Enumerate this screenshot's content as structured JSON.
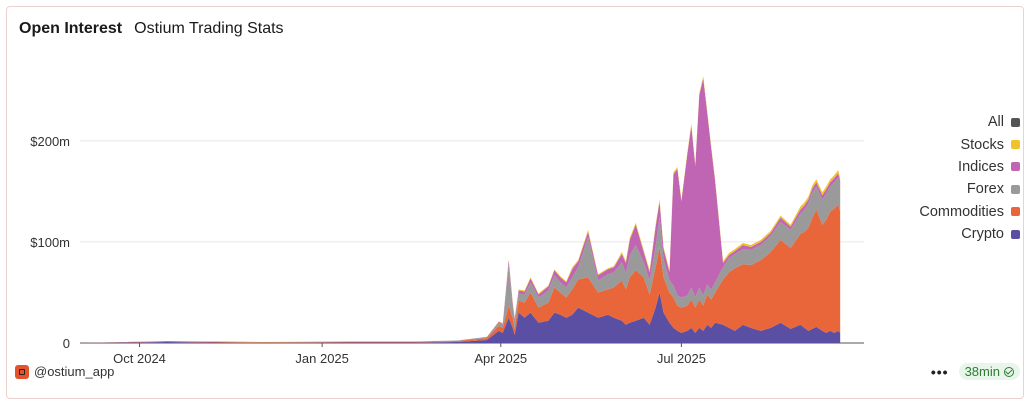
{
  "header": {
    "title": "Open Interest",
    "subtitle": "Ostium Trading Stats"
  },
  "footer": {
    "handle": "@ostium_app",
    "more_label": "•••",
    "freshness": "38min"
  },
  "colors": {
    "Stocks": "#f0c22c",
    "Indices": "#c064b4",
    "Forex": "#9a9a9a",
    "Commodities": "#e8663a",
    "Crypto": "#5a4fa3",
    "All": "#555555"
  },
  "legend": [
    "All",
    "Stocks",
    "Indices",
    "Forex",
    "Commodities",
    "Crypto"
  ],
  "chart_data": {
    "type": "area",
    "stacked": true,
    "x_start": "2024-09-01",
    "x_end": "2025-10-01",
    "ylim": [
      0,
      280
    ],
    "yticks": [
      {
        "value": 0,
        "label": "0"
      },
      {
        "value": 100,
        "label": "$100m"
      },
      {
        "value": 200,
        "label": "$200m"
      }
    ],
    "xticks": [
      {
        "date": "2024-10-01",
        "label": "Oct 2024"
      },
      {
        "date": "2025-01-01",
        "label": "Jan 2025"
      },
      {
        "date": "2025-04-01",
        "label": "Apr 2025"
      },
      {
        "date": "2025-07-01",
        "label": "Jul 2025"
      }
    ],
    "grid": true,
    "legend_position": "right",
    "x": [
      "2024-09-01",
      "2024-10-15",
      "2024-12-01",
      "2025-01-15",
      "2025-02-15",
      "2025-03-10",
      "2025-03-25",
      "2025-03-31",
      "2025-04-02",
      "2025-04-05",
      "2025-04-07",
      "2025-04-08",
      "2025-04-10",
      "2025-04-13",
      "2025-04-16",
      "2025-04-20",
      "2025-04-25",
      "2025-04-28",
      "2025-05-01",
      "2025-05-04",
      "2025-05-07",
      "2025-05-10",
      "2025-05-15",
      "2025-05-20",
      "2025-05-25",
      "2025-05-28",
      "2025-06-01",
      "2025-06-03",
      "2025-06-05",
      "2025-06-08",
      "2025-06-12",
      "2025-06-15",
      "2025-06-18",
      "2025-06-20",
      "2025-06-22",
      "2025-06-25",
      "2025-06-27",
      "2025-06-29",
      "2025-07-01",
      "2025-07-04",
      "2025-07-06",
      "2025-07-08",
      "2025-07-10",
      "2025-07-12",
      "2025-07-14",
      "2025-07-16",
      "2025-07-18",
      "2025-07-22",
      "2025-07-25",
      "2025-07-28",
      "2025-08-01",
      "2025-08-05",
      "2025-08-10",
      "2025-08-15",
      "2025-08-20",
      "2025-08-25",
      "2025-08-30",
      "2025-09-01",
      "2025-09-03",
      "2025-09-05",
      "2025-09-07",
      "2025-09-10",
      "2025-09-12",
      "2025-09-14",
      "2025-09-16",
      "2025-09-18",
      "2025-09-19"
    ],
    "series": [
      {
        "name": "Crypto",
        "values": [
          0,
          1,
          0,
          0.5,
          0.5,
          1,
          3,
          12,
          10,
          25,
          15,
          8,
          30,
          25,
          30,
          20,
          22,
          30,
          28,
          25,
          28,
          35,
          30,
          25,
          28,
          25,
          22,
          18,
          20,
          22,
          25,
          18,
          35,
          50,
          30,
          20,
          15,
          12,
          10,
          12,
          15,
          10,
          15,
          12,
          18,
          15,
          20,
          18,
          15,
          12,
          18,
          15,
          12,
          15,
          20,
          14,
          18,
          15,
          12,
          14,
          16,
          12,
          10,
          12,
          10,
          12,
          10
        ]
      },
      {
        "name": "Commodities",
        "values": [
          0,
          0.5,
          0.5,
          0.5,
          0.5,
          1,
          2,
          5,
          5,
          12,
          10,
          6,
          12,
          15,
          20,
          15,
          18,
          25,
          22,
          20,
          25,
          28,
          35,
          25,
          25,
          30,
          40,
          35,
          45,
          50,
          40,
          30,
          40,
          45,
          35,
          30,
          30,
          25,
          25,
          25,
          28,
          25,
          28,
          25,
          30,
          28,
          30,
          45,
          55,
          62,
          60,
          62,
          70,
          75,
          82,
          80,
          90,
          95,
          102,
          110,
          116,
          105,
          112,
          118,
          123,
          125,
          120
        ]
      },
      {
        "name": "Forex",
        "values": [
          0,
          0.5,
          0.5,
          0.5,
          0.5,
          0.5,
          1,
          3,
          3,
          40,
          12,
          8,
          7,
          8,
          10,
          10,
          12,
          12,
          10,
          10,
          12,
          12,
          40,
          12,
          15,
          15,
          18,
          16,
          22,
          25,
          15,
          14,
          20,
          30,
          18,
          12,
          12,
          10,
          10,
          10,
          12,
          10,
          12,
          10,
          10,
          10,
          10,
          12,
          14,
          14,
          15,
          15,
          15,
          16,
          18,
          18,
          20,
          22,
          24,
          25,
          23,
          25,
          26,
          25,
          26,
          27,
          26
        ]
      },
      {
        "name": "Indices",
        "values": [
          0,
          0,
          0,
          0,
          0,
          0,
          0,
          1,
          1,
          5,
          3,
          2,
          3,
          3,
          4,
          3,
          4,
          5,
          5,
          5,
          8,
          6,
          5,
          5,
          5,
          5,
          8,
          10,
          15,
          20,
          10,
          8,
          20,
          15,
          10,
          8,
          110,
          125,
          95,
          140,
          160,
          130,
          190,
          215,
          170,
          140,
          100,
          4,
          3,
          3,
          4,
          3,
          3,
          3,
          4,
          3,
          4,
          4,
          4,
          4,
          4,
          4,
          4,
          4,
          4,
          4,
          4
        ]
      },
      {
        "name": "Stocks",
        "values": [
          0,
          0,
          0,
          0,
          0,
          0,
          0,
          0.5,
          0.5,
          1,
          1,
          1,
          1,
          1,
          1,
          1,
          1,
          1,
          1,
          1,
          2,
          1,
          2,
          1,
          1,
          1,
          2,
          2,
          2,
          2,
          2,
          2,
          2,
          2,
          2,
          2,
          2,
          2,
          2,
          2,
          2,
          2,
          2,
          2,
          2,
          2,
          2,
          2,
          2,
          2,
          2,
          2,
          2,
          2,
          2,
          2,
          3,
          3,
          3,
          3,
          3,
          3,
          3,
          3,
          3,
          3,
          3
        ]
      }
    ]
  }
}
